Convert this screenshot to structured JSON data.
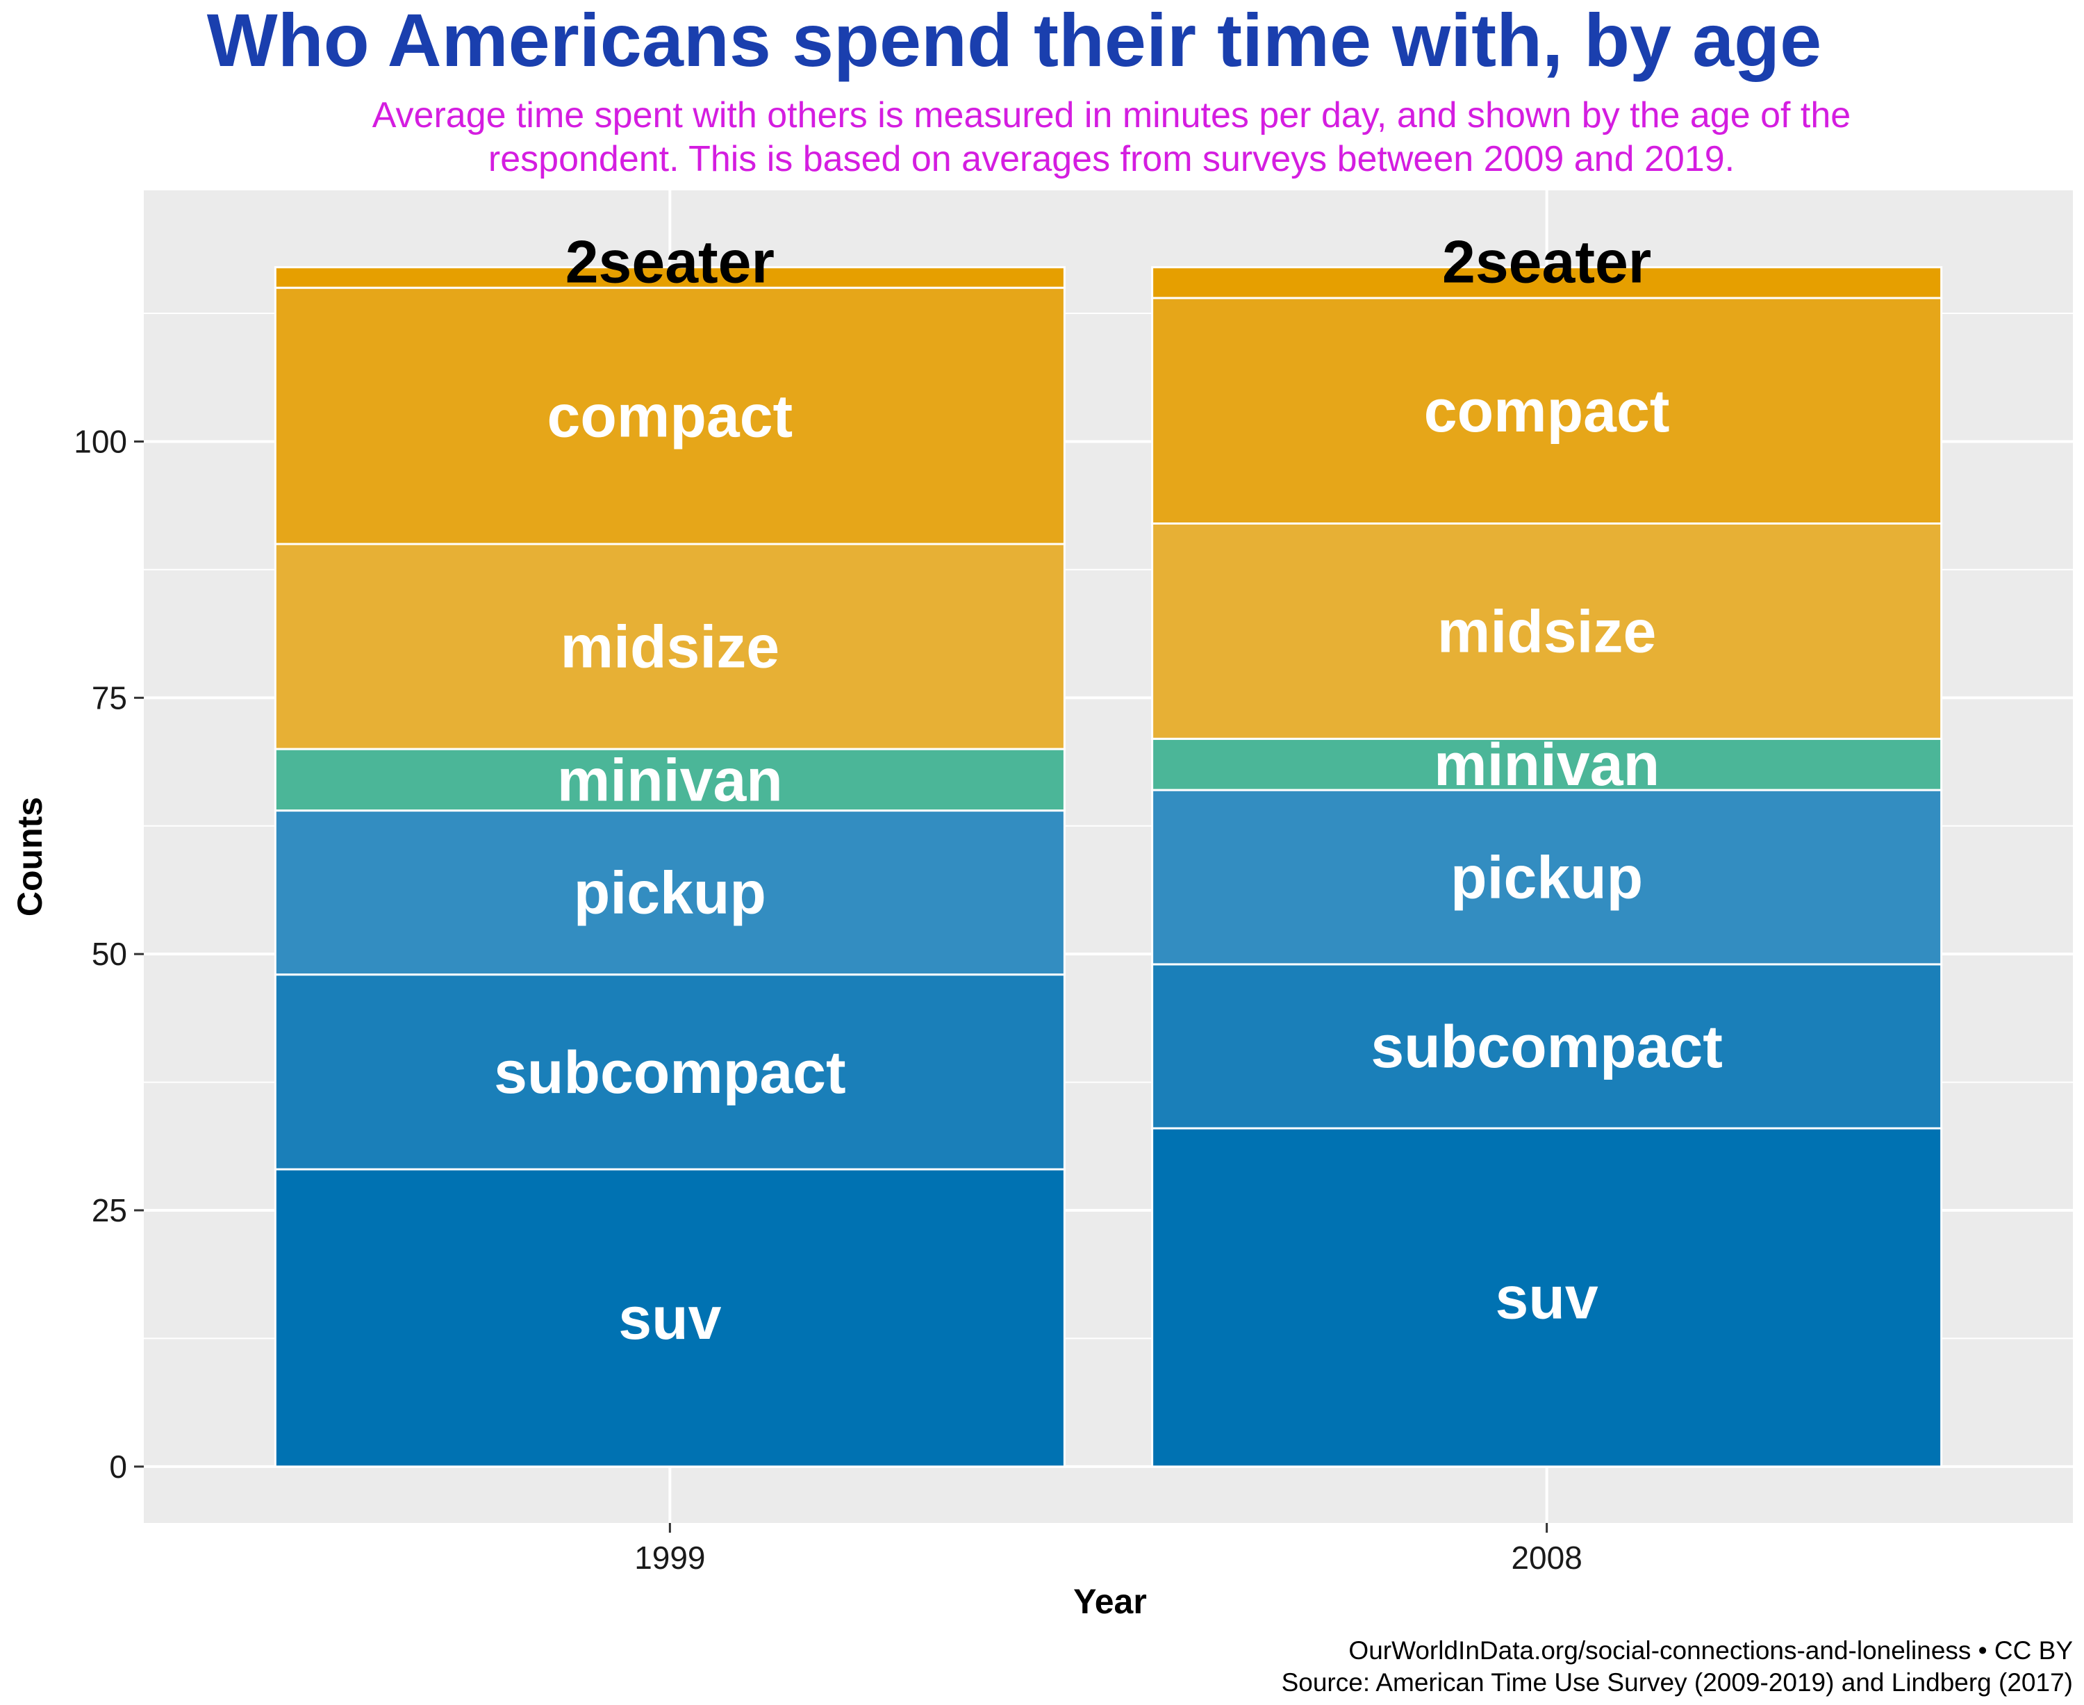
{
  "chart_data": {
    "type": "bar",
    "stacked": true,
    "title": "Who Americans spend their time with, by age",
    "subtitle_lines": [
      "Average time spent with others is measured in minutes per day, and shown by the age of the",
      "respondent. This is based on averages from surveys between 2009 and 2019."
    ],
    "xlabel": "Year",
    "ylabel": "Counts",
    "categories": [
      "1999",
      "2008"
    ],
    "ylim": [
      -5.5,
      124.5
    ],
    "yticks": [
      0,
      25,
      50,
      75,
      100
    ],
    "ytick_labels": [
      "0",
      "25",
      "50",
      "75",
      "100"
    ],
    "grid": true,
    "legend": "none",
    "series": [
      {
        "name": "suv",
        "values": [
          29,
          33
        ],
        "color": "#0072B2",
        "label_color": "#ffffff"
      },
      {
        "name": "subcompact",
        "values": [
          19,
          16
        ],
        "color": "#1A7FB9",
        "label_color": "#ffffff"
      },
      {
        "name": "pickup",
        "values": [
          16,
          17
        ],
        "color": "#338DC1",
        "label_color": "#ffffff"
      },
      {
        "name": "minivan",
        "values": [
          6,
          5
        ],
        "color": "#4BB698",
        "label_color": "#ffffff"
      },
      {
        "name": "midsize",
        "values": [
          20,
          21
        ],
        "color": "#E7B035",
        "label_color": "#ffffff"
      },
      {
        "name": "compact",
        "values": [
          25,
          22
        ],
        "color": "#E6A619",
        "label_color": "#ffffff"
      },
      {
        "name": "2seater",
        "values": [
          2,
          3
        ],
        "color": "#E69F00",
        "label_color": "#000000"
      }
    ],
    "caption_lines": [
      "OurWorldInData.org/social-connections-and-loneliness • CC BY",
      "Source: American Time Use Survey (2009-2019) and Lindberg (2017)"
    ],
    "colors": {
      "title": "#1A3FAE",
      "subtitle": "#D41DE0",
      "panel_background": "#EBEBEB",
      "gridline": "#FFFFFF"
    }
  }
}
